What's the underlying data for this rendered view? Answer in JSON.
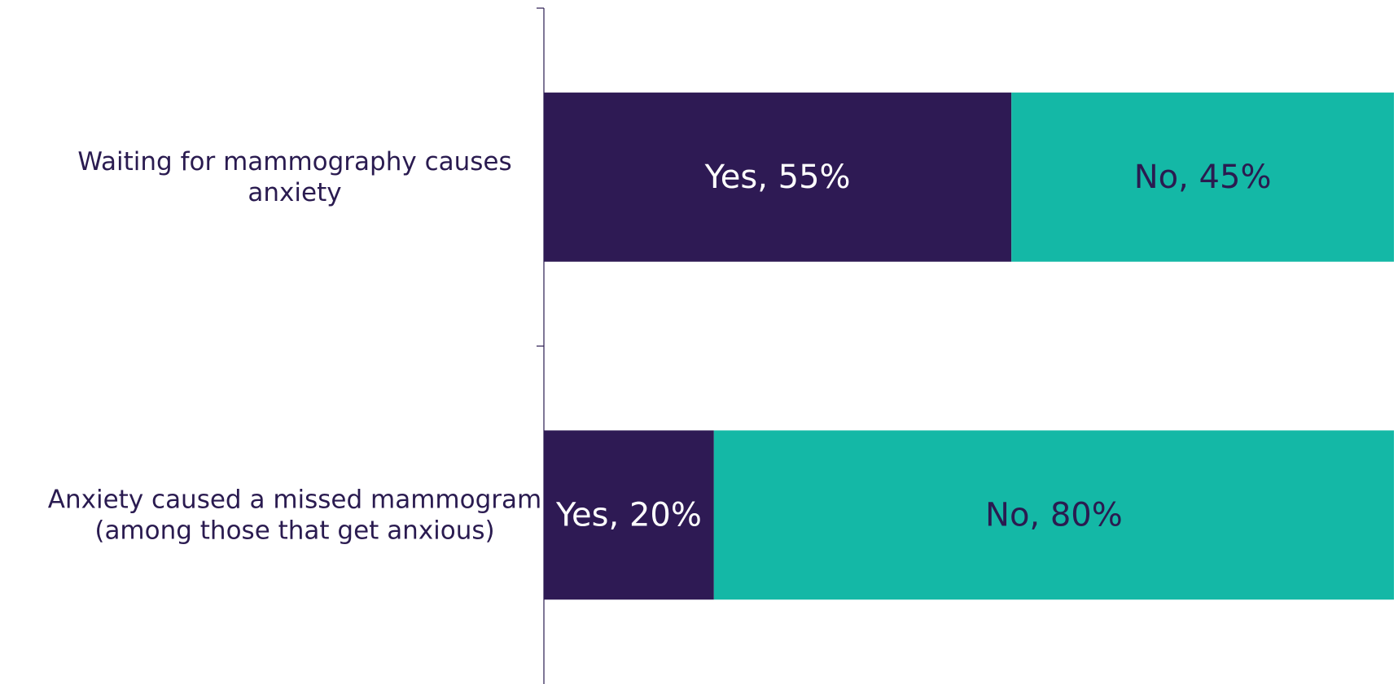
{
  "chart_data": {
    "type": "bar",
    "orientation": "horizontal",
    "stacked": true,
    "normalized_percent": true,
    "categories": [
      [
        "Waiting for mammography causes",
        "anxiety"
      ],
      [
        "Anxiety caused a missed mammogram",
        "(among those that get anxious)"
      ]
    ],
    "series": [
      {
        "name": "Yes",
        "values": [
          55,
          20
        ],
        "labels": [
          "Yes, 55%",
          "Yes, 20%"
        ],
        "color": "#2e1a54",
        "label_color": "#ffffff"
      },
      {
        "name": "No",
        "values": [
          45,
          80
        ],
        "labels": [
          "No, 45%",
          "No, 80%"
        ],
        "color": "#14b8a6",
        "label_color": "#2a1b50"
      }
    ],
    "xlim": [
      0,
      100
    ],
    "title": "",
    "xlabel": "",
    "ylabel": "",
    "grid": false,
    "legend": "none",
    "category_label_color": "#2a1b50",
    "axis_color": "#2a1b50"
  }
}
